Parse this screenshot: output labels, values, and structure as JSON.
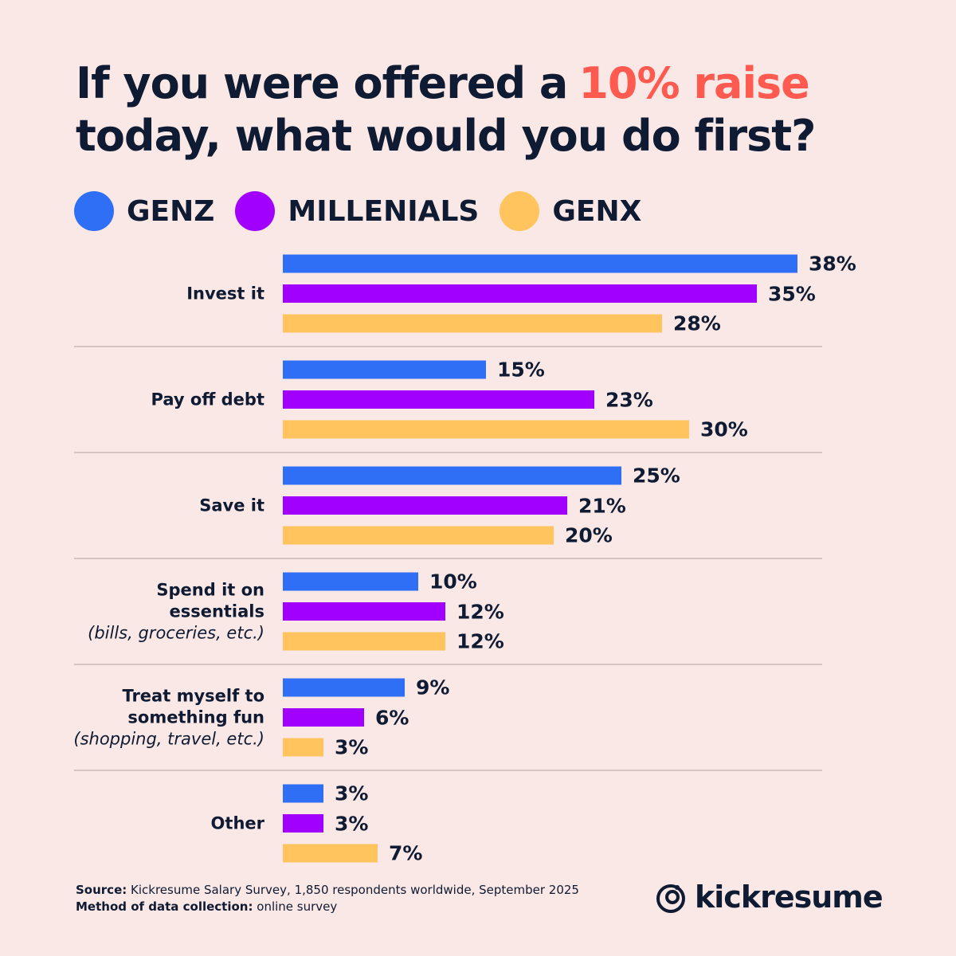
{
  "chart_data": {
    "type": "bar",
    "orientation": "horizontal",
    "title": [
      "If you were offered a",
      "10% raise",
      "today, what would you do first?"
    ],
    "title_highlight_color": "#ff5a4f",
    "categories": [
      "Invest it",
      "Pay off debt",
      "Save it",
      "Spend it on essentials",
      "Treat myself to something fun",
      "Other"
    ],
    "category_notes": [
      null,
      null,
      null,
      "(bills, groceries, etc.)",
      "(shopping, travel, etc.)",
      null
    ],
    "series": [
      {
        "name": "GENZ",
        "color": "#2f6ff5",
        "values": [
          38,
          15,
          25,
          10,
          9,
          3
        ],
        "value_labels": [
          "38%",
          "15%",
          "25%",
          "10%",
          "9%",
          "3%"
        ]
      },
      {
        "name": "MILLENIALS",
        "color": "#a100ff",
        "values": [
          35,
          23,
          21,
          12,
          6,
          3
        ],
        "value_labels": [
          "35%",
          "23%",
          "21%",
          "12%",
          "6%",
          "3%"
        ]
      },
      {
        "name": "GENX",
        "color": "#ffc45e",
        "values": [
          28,
          30,
          20,
          12,
          3,
          7
        ],
        "value_labels": [
          "28%",
          "30%",
          "20%",
          "12%",
          "3%",
          "7%"
        ]
      }
    ],
    "source_label": "Source:",
    "source": "Kickresume Salary Survey, 1,850 respondents worldwide, September 2025",
    "method_label": "Method of data collection:",
    "method": "online survey",
    "brand": "kickresume"
  }
}
